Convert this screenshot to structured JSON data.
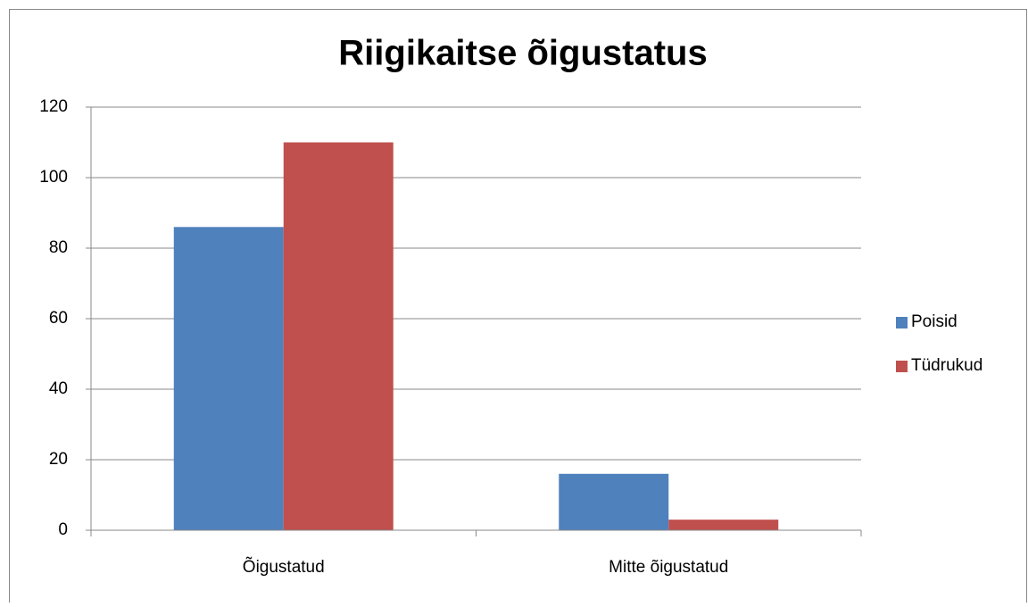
{
  "chart_data": {
    "type": "bar",
    "title": "Riigikaitse õigustatus",
    "categories": [
      "Õigustatud",
      "Mitte õigustatud"
    ],
    "series": [
      {
        "name": "Poisid",
        "color": "#4f81bd",
        "values": [
          86,
          16
        ]
      },
      {
        "name": "Tüdrukud",
        "color": "#c0504d",
        "values": [
          110,
          3
        ]
      }
    ],
    "ylim": [
      0,
      120
    ],
    "yticks": [
      0,
      20,
      40,
      60,
      80,
      100,
      120
    ],
    "grid": true,
    "legend": "right"
  }
}
